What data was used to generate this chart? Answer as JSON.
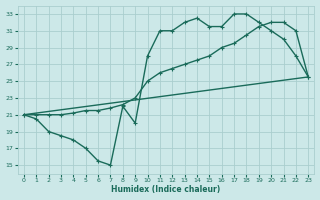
{
  "background_color": "#cce8e8",
  "grid_color": "#aacece",
  "line_color": "#1a6b5a",
  "line_width": 1.0,
  "marker": "+",
  "marker_size": 3,
  "xlabel": "Humidex (Indice chaleur)",
  "xlim": [
    -0.5,
    23.5
  ],
  "ylim": [
    14,
    34
  ],
  "xticks": [
    0,
    1,
    2,
    3,
    4,
    5,
    6,
    7,
    8,
    9,
    10,
    11,
    12,
    13,
    14,
    15,
    16,
    17,
    18,
    19,
    20,
    21,
    22,
    23
  ],
  "yticks": [
    15,
    17,
    19,
    21,
    23,
    25,
    27,
    29,
    31,
    33
  ],
  "line1_x": [
    0,
    1,
    2,
    3,
    4,
    5,
    6,
    7,
    8,
    9,
    10,
    11,
    12,
    13,
    14,
    15,
    16,
    17,
    18,
    19,
    20,
    21,
    22,
    23
  ],
  "line1_y": [
    21,
    20.5,
    19,
    18.5,
    18,
    17,
    15.5,
    15,
    22,
    20,
    28,
    31,
    31,
    32,
    32.5,
    31.5,
    31.5,
    33,
    33,
    32,
    31,
    30,
    28,
    25.5
  ],
  "line2_x": [
    0,
    1,
    2,
    3,
    4,
    5,
    6,
    7,
    8,
    9,
    10,
    11,
    12,
    13,
    14,
    15,
    16,
    17,
    18,
    19,
    20,
    21,
    22,
    23
  ],
  "line2_y": [
    21,
    21,
    21,
    21,
    21.2,
    21.5,
    21.5,
    21.8,
    22.2,
    23,
    25,
    26,
    26.5,
    27,
    27.5,
    28,
    29,
    29.5,
    30.5,
    31.5,
    32,
    32,
    31,
    25.5
  ],
  "line3_x": [
    0,
    23
  ],
  "line3_y": [
    21,
    25.5
  ]
}
